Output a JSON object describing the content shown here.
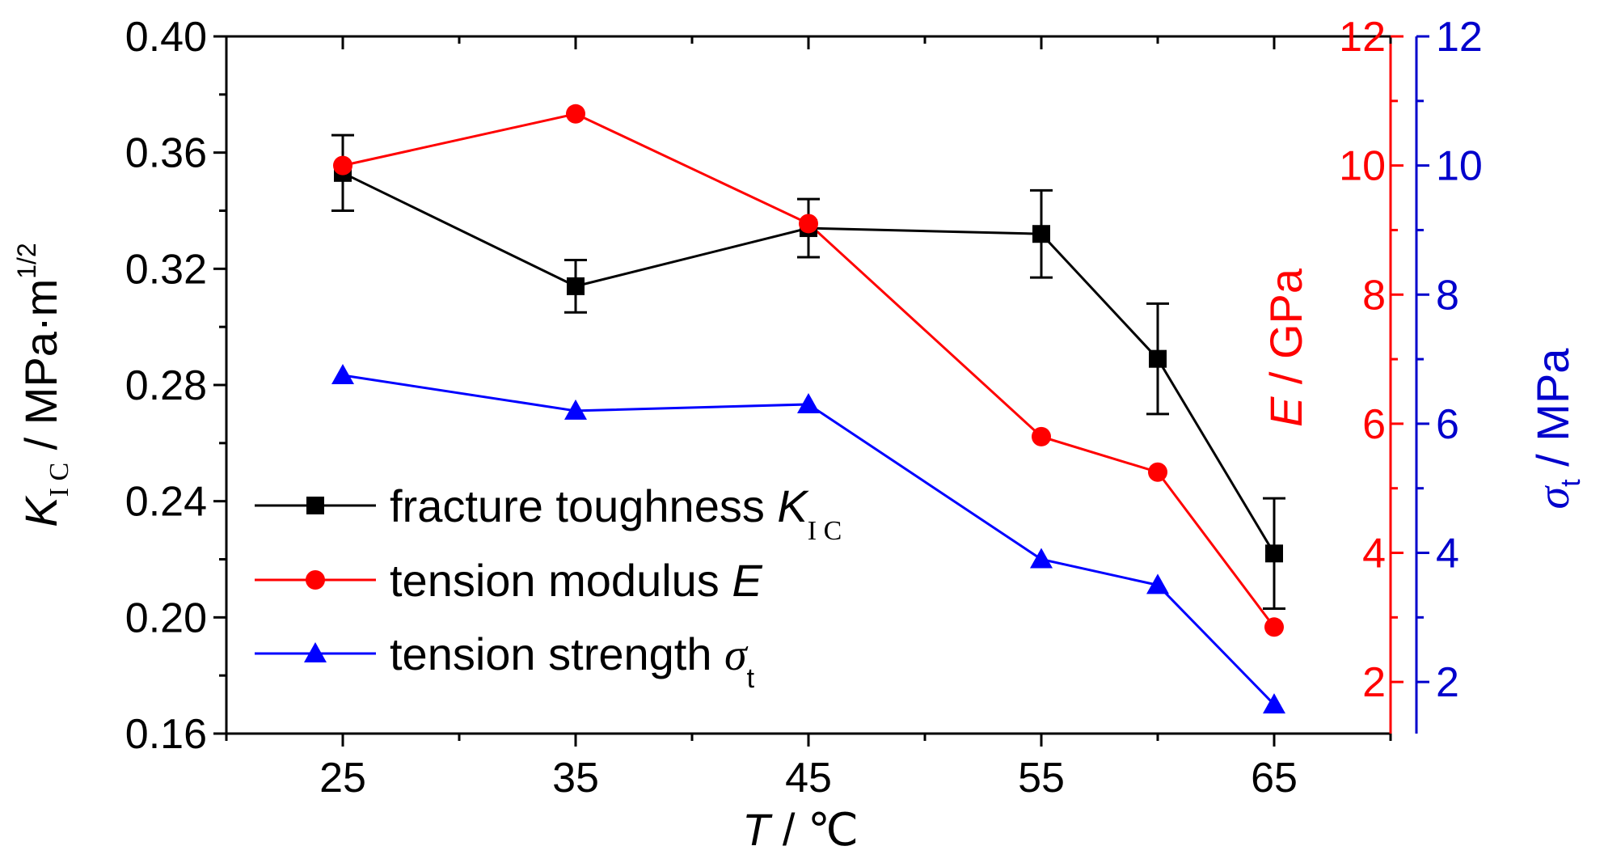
{
  "colors": {
    "axis_left": "#000000",
    "axis_right_E": "#ff0000",
    "axis_right_sigma": "#0000cc",
    "series_K": "#000000",
    "series_E": "#ff0000",
    "series_sigma": "#0000ff"
  },
  "icons": {
    "K": "square-marker",
    "E": "circle-marker",
    "sigma": "triangle-marker"
  },
  "chart_data": {
    "type": "line",
    "grid": false,
    "legend_position": "bottom-left",
    "x_axis": {
      "label_italic": "T",
      "label_rest": " / ℃",
      "range": [
        20,
        70
      ],
      "ticks": [
        25,
        35,
        45,
        55,
        65
      ],
      "tick_labels": [
        "25",
        "35",
        "45",
        "55",
        "65"
      ]
    },
    "y_left": {
      "label_main": "K",
      "label_sub": "I C",
      "label_rest": " / MPa·m",
      "label_sup": "1/2",
      "range": [
        0.16,
        0.4
      ],
      "ticks": [
        0.16,
        0.2,
        0.24,
        0.28,
        0.32,
        0.36,
        0.4
      ],
      "tick_labels": [
        "0.16",
        "0.20",
        "0.24",
        "0.28",
        "0.32",
        "0.36",
        "0.40"
      ]
    },
    "y_right_E": {
      "label_italic": "E",
      "label_rest": " / GPa",
      "range": [
        1.2,
        12
      ],
      "ticks": [
        2,
        4,
        6,
        8,
        10,
        12
      ],
      "tick_labels": [
        "2",
        "4",
        "6",
        "8",
        "10",
        "12"
      ]
    },
    "y_right_sigma": {
      "label_main": "σ",
      "label_sub": "t",
      "label_rest": " / MPa",
      "range": [
        1.2,
        12
      ],
      "ticks": [
        2,
        4,
        6,
        8,
        10,
        12
      ],
      "tick_labels": [
        "2",
        "4",
        "6",
        "8",
        "10",
        "12"
      ]
    },
    "series": [
      {
        "key": "K",
        "legend_text": "fracture toughness ",
        "legend_italic": "K",
        "legend_sub": "I C",
        "axis": "left",
        "x": [
          25,
          35,
          45,
          55,
          60,
          65
        ],
        "y": [
          0.353,
          0.314,
          0.334,
          0.332,
          0.289,
          0.222
        ],
        "error": [
          0.013,
          0.009,
          0.01,
          0.015,
          0.019,
          0.019
        ]
      },
      {
        "key": "E",
        "legend_text": "tension modulus ",
        "legend_italic": "E",
        "legend_sub": "",
        "axis": "right_E",
        "x": [
          25,
          35,
          45,
          55,
          60,
          65
        ],
        "y": [
          10.0,
          10.8,
          9.1,
          5.8,
          5.25,
          2.85
        ]
      },
      {
        "key": "sigma",
        "legend_text": "tension strength ",
        "legend_italic": "σ",
        "legend_sub": "t",
        "axis": "right_sigma",
        "x": [
          25,
          35,
          45,
          55,
          60,
          65
        ],
        "y": [
          6.75,
          6.2,
          6.3,
          3.9,
          3.5,
          1.65
        ]
      }
    ]
  }
}
